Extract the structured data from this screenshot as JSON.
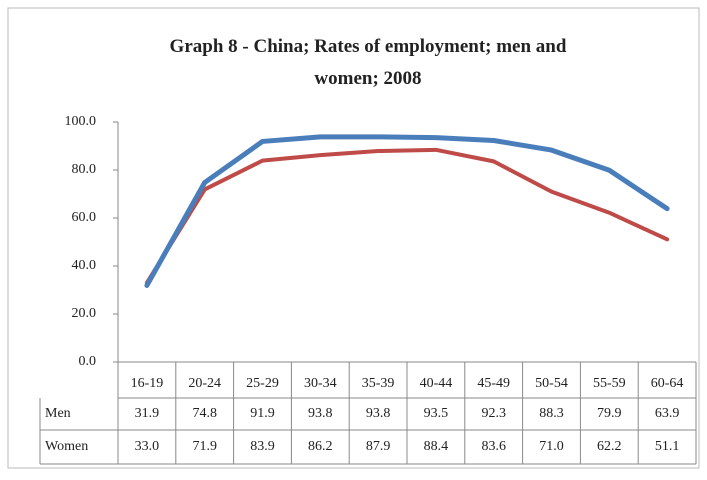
{
  "chart_data": {
    "type": "line",
    "title": "Graph 8 - China; Rates of employment; men and women; 2008",
    "categories": [
      "16-19",
      "20-24",
      "25-29",
      "30-34",
      "35-39",
      "40-44",
      "45-49",
      "50-54",
      "55-59",
      "60-64"
    ],
    "series": [
      {
        "name": "Men",
        "color": "#4a7ebb",
        "values": [
          31.9,
          74.8,
          91.9,
          93.8,
          93.8,
          93.5,
          92.3,
          88.3,
          79.9,
          63.9
        ],
        "value_labels": [
          "31.9",
          "74.8",
          "91.9",
          "93.8",
          "93.8",
          "93.5",
          "92.3",
          "88.3",
          "79.9",
          "63.9"
        ]
      },
      {
        "name": "Women",
        "color": "#be4b48",
        "values": [
          33.0,
          71.9,
          83.9,
          86.2,
          87.9,
          88.4,
          83.6,
          71.0,
          62.2,
          51.1
        ],
        "value_labels": [
          "33.0",
          "71.9",
          "83.9",
          "86.2",
          "87.9",
          "88.4",
          "83.6",
          "71.0",
          "62.2",
          "51.1"
        ]
      }
    ],
    "ylim": [
      0,
      100
    ],
    "yticks": [
      {
        "value": 0,
        "label": "0.0"
      },
      {
        "value": 20,
        "label": "20.0"
      },
      {
        "value": 40,
        "label": "40.0"
      },
      {
        "value": 60,
        "label": "60.0"
      },
      {
        "value": 80,
        "label": "80.0"
      },
      {
        "value": 100,
        "label": "100.0"
      }
    ],
    "grid": false
  }
}
